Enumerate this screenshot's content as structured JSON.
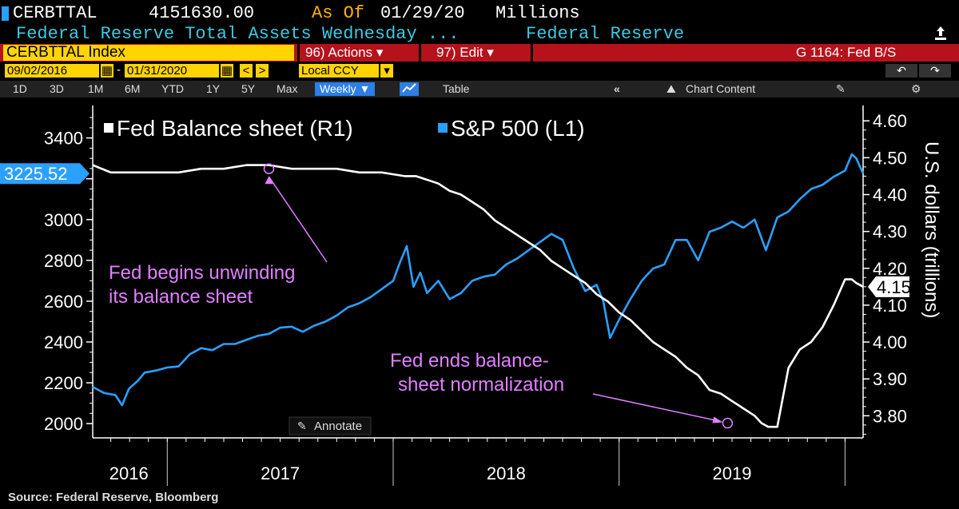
{
  "header": {
    "ticker": "CERBTTAL",
    "last_value": "4151630.00",
    "as_of_label": "As Of",
    "as_of_date": "01/29/20",
    "units": "Millions",
    "description": "Federal Reserve Total Assets Wednesday ...",
    "source_name": "Federal Reserve",
    "export_icon": "export-icon"
  },
  "toolbar": {
    "index_name": "CERBTTAL Index",
    "actions_label": "96) Actions ▾",
    "edit_label": "97) Edit ▾",
    "page_code": "G 1164: Fed B/S"
  },
  "date_range": {
    "start": "09/02/2016",
    "end": "01/31/2020",
    "currency": "Local CCY",
    "undo_icon": "undo-icon",
    "redo_icon": "redo-icon"
  },
  "period_bar": {
    "periods": [
      "1D",
      "3D",
      "1M",
      "6M",
      "YTD",
      "1Y",
      "5Y",
      "Max"
    ],
    "frequency": "Weekly ▼",
    "table_label": "Table",
    "chart_content_label": "Chart Content"
  },
  "colors": {
    "sp500": "#2aa0ff",
    "fed": "#ffffff",
    "annotation": "#e080ff",
    "accent_red": "#b5121b",
    "accent_yellow": "#ffd400"
  },
  "chart_data": {
    "type": "line",
    "title": "",
    "xlabel": "",
    "legend": [
      {
        "label": "Fed Balance sheet (R1)",
        "color": "#ffffff"
      },
      {
        "label": "S&P 500 (L1)",
        "color": "#2aa0ff"
      }
    ],
    "left_axis": {
      "ylim": [
        1930,
        3520
      ],
      "ticks": [
        2000,
        2200,
        2400,
        2600,
        2800,
        3000,
        3200,
        3400
      ],
      "tick_labels": [
        "2000",
        "2200",
        "2400",
        "2600",
        "2800",
        "3000",
        "",
        "3400"
      ],
      "last_label": "3225.52",
      "last_value": 3225.52
    },
    "right_axis": {
      "ylim": [
        3.74,
        4.62
      ],
      "ticks": [
        3.8,
        3.9,
        4.0,
        4.1,
        4.2,
        4.3,
        4.4,
        4.5,
        4.6
      ],
      "tick_labels": [
        "3.80",
        "3.90",
        "4.00",
        "4.10",
        "4.20",
        "4.30",
        "4.40",
        "4.50",
        "4.60"
      ],
      "ylabel": "U.S. dollars (trillions)",
      "last_label": "4.15",
      "last_value": 4.15
    },
    "x_axis": {
      "xlim": [
        2016.67,
        2020.08
      ],
      "years": [
        {
          "label": "2016",
          "center": 2016.83
        },
        {
          "label": "2017",
          "center": 2017.5
        },
        {
          "label": "2018",
          "center": 2018.5
        },
        {
          "label": "2019",
          "center": 2019.5
        }
      ],
      "separators": [
        2017.0,
        2018.0,
        2019.0,
        2020.0
      ]
    },
    "series": [
      {
        "name": "S&P 500",
        "axis": "left",
        "color": "#2aa0ff",
        "x": [
          2016.67,
          2016.72,
          2016.77,
          2016.8,
          2016.83,
          2016.87,
          2016.9,
          2016.95,
          2017.0,
          2017.05,
          2017.1,
          2017.15,
          2017.2,
          2017.25,
          2017.3,
          2017.35,
          2017.4,
          2017.45,
          2017.5,
          2017.55,
          2017.6,
          2017.65,
          2017.7,
          2017.75,
          2017.8,
          2017.85,
          2017.9,
          2017.95,
          2018.0,
          2018.03,
          2018.06,
          2018.09,
          2018.12,
          2018.15,
          2018.2,
          2018.25,
          2018.3,
          2018.35,
          2018.4,
          2018.45,
          2018.5,
          2018.55,
          2018.6,
          2018.65,
          2018.7,
          2018.75,
          2018.8,
          2018.85,
          2018.9,
          2018.93,
          2018.96,
          2019.0,
          2019.05,
          2019.1,
          2019.15,
          2019.2,
          2019.25,
          2019.3,
          2019.35,
          2019.4,
          2019.45,
          2019.5,
          2019.55,
          2019.6,
          2019.65,
          2019.7,
          2019.75,
          2019.8,
          2019.85,
          2019.9,
          2019.95,
          2020.0,
          2020.03,
          2020.05,
          2020.08
        ],
        "y": [
          2180,
          2150,
          2140,
          2090,
          2170,
          2210,
          2250,
          2260,
          2275,
          2280,
          2340,
          2370,
          2360,
          2390,
          2390,
          2410,
          2430,
          2440,
          2470,
          2475,
          2450,
          2480,
          2500,
          2530,
          2570,
          2590,
          2620,
          2660,
          2700,
          2790,
          2870,
          2670,
          2740,
          2640,
          2700,
          2610,
          2640,
          2700,
          2720,
          2730,
          2780,
          2810,
          2850,
          2890,
          2930,
          2900,
          2760,
          2650,
          2680,
          2600,
          2420,
          2510,
          2610,
          2700,
          2760,
          2780,
          2900,
          2900,
          2800,
          2940,
          2960,
          2990,
          2960,
          3000,
          2850,
          3010,
          3040,
          3100,
          3150,
          3170,
          3210,
          3240,
          3320,
          3300,
          3225.52
        ]
      },
      {
        "name": "Fed Balance sheet",
        "axis": "right",
        "color": "#ffffff",
        "x": [
          2016.67,
          2016.75,
          2016.85,
          2016.95,
          2017.05,
          2017.15,
          2017.25,
          2017.35,
          2017.45,
          2017.55,
          2017.65,
          2017.75,
          2017.85,
          2017.95,
          2018.0,
          2018.05,
          2018.1,
          2018.15,
          2018.2,
          2018.25,
          2018.3,
          2018.35,
          2018.4,
          2018.45,
          2018.5,
          2018.55,
          2018.6,
          2018.65,
          2018.7,
          2018.75,
          2018.8,
          2018.85,
          2018.9,
          2018.95,
          2019.0,
          2019.05,
          2019.1,
          2019.15,
          2019.2,
          2019.25,
          2019.3,
          2019.35,
          2019.4,
          2019.45,
          2019.5,
          2019.55,
          2019.6,
          2019.63,
          2019.66,
          2019.7,
          2019.75,
          2019.8,
          2019.85,
          2019.9,
          2019.95,
          2020.0,
          2020.03,
          2020.05,
          2020.08
        ],
        "y": [
          4.48,
          4.46,
          4.46,
          4.46,
          4.46,
          4.47,
          4.47,
          4.48,
          4.48,
          4.47,
          4.47,
          4.47,
          4.46,
          4.46,
          4.455,
          4.45,
          4.45,
          4.44,
          4.43,
          4.41,
          4.4,
          4.38,
          4.36,
          4.33,
          4.31,
          4.29,
          4.27,
          4.25,
          4.22,
          4.2,
          4.18,
          4.16,
          4.13,
          4.11,
          4.08,
          4.06,
          4.03,
          4.0,
          3.98,
          3.96,
          3.93,
          3.91,
          3.87,
          3.86,
          3.84,
          3.82,
          3.8,
          3.78,
          3.77,
          3.77,
          3.93,
          3.98,
          4.0,
          4.04,
          4.1,
          4.17,
          4.17,
          4.16,
          4.15
        ]
      }
    ],
    "annotations": [
      {
        "text_lines": [
          "Fed begins unwinding",
          "its balance sheet"
        ],
        "point_x": 2017.45,
        "point_y": 4.47,
        "axis": "right"
      },
      {
        "text_lines": [
          "Fed ends balance-",
          "sheet normalization"
        ],
        "point_x": 2019.48,
        "point_y": 3.78,
        "axis": "right"
      }
    ],
    "annotate_label": "Annotate"
  },
  "footer": {
    "source": "Source: Federal Reserve, Bloomberg"
  }
}
